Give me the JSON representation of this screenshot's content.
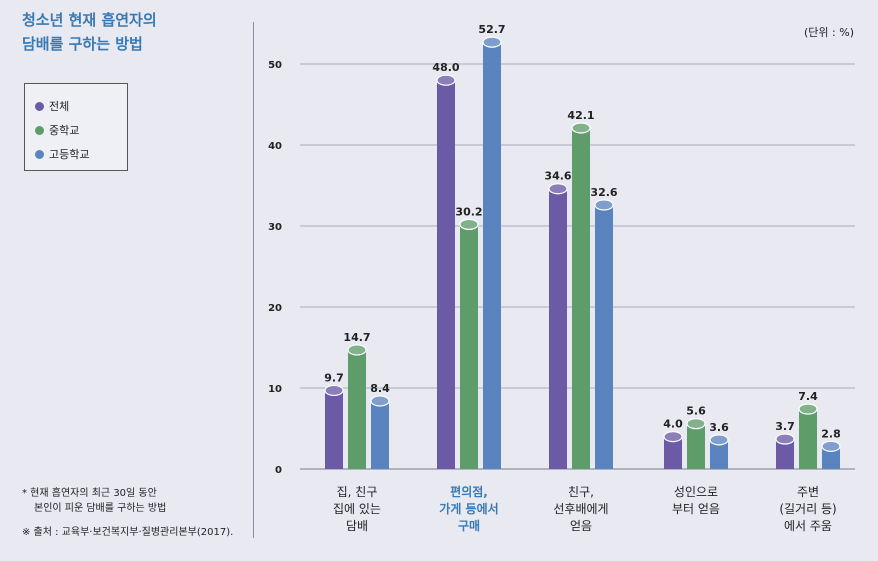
{
  "title": {
    "line1": "청소년 현재 흡연자의",
    "line2": "담배를 구하는 방법"
  },
  "unit_label": "(단위 : %)",
  "footnote": {
    "line1": "* 현재 흡연자의 최근 30일 동안",
    "line2": "본인이 피운 담배를 구하는 방법",
    "source": "※ 출처 : 교육부·보건복지부·질병관리본부(2017)."
  },
  "colors": {
    "background": "#e8e9f1",
    "title": "#3a7ab4",
    "highlight_category": "#3a7ab4"
  },
  "chart_data": {
    "type": "bar",
    "categories": [
      [
        "집, 친구",
        "집에 있는",
        "담배"
      ],
      [
        "편의점,",
        "가게 등에서",
        "구매"
      ],
      [
        "친구,",
        "선후배에게",
        "얻음"
      ],
      [
        "성인으로",
        "부터 얻음"
      ],
      [
        "주변",
        "(길거리 등)",
        "에서 주움"
      ]
    ],
    "highlighted_category_index": 1,
    "series": [
      {
        "name": "전체",
        "color": "#6b5aa5",
        "values": [
          9.7,
          48.0,
          34.6,
          4.0,
          3.7
        ]
      },
      {
        "name": "중학교",
        "color": "#5e9c6a",
        "values": [
          14.7,
          30.2,
          42.1,
          5.6,
          7.4
        ]
      },
      {
        "name": "고등학교",
        "color": "#5a84bf",
        "values": [
          8.4,
          52.7,
          32.6,
          3.6,
          2.8
        ]
      }
    ],
    "yticks": [
      0,
      10,
      20,
      30,
      40,
      50
    ],
    "ylim": [
      0,
      55
    ],
    "grid": true,
    "legend_position": "top-left"
  }
}
